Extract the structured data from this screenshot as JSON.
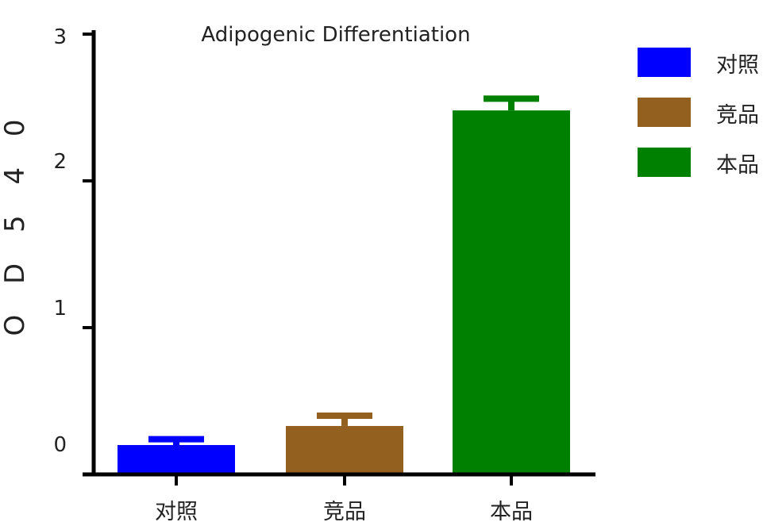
{
  "chart_data": {
    "type": "bar",
    "title": "Adipogenic Differentiation",
    "ylabel": "O D 5 4 0",
    "xlabel": "",
    "ylim": [
      0,
      3
    ],
    "yticks": [
      0,
      1,
      2,
      3
    ],
    "ytick_labels": [
      "0",
      "1",
      "2",
      "3"
    ],
    "categories": [
      "对照",
      "竞品",
      "本品"
    ],
    "values": [
      0.2,
      0.33,
      2.48
    ],
    "errors": [
      0.04,
      0.07,
      0.08
    ],
    "colors": [
      "#0000ff",
      "#946020",
      "#008000"
    ],
    "legend": {
      "position": "right",
      "entries": [
        "对照",
        "竞品",
        "本品"
      ]
    },
    "grid": false
  }
}
